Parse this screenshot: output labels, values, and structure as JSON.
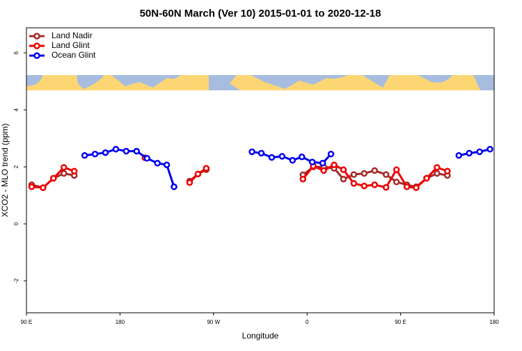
{
  "chart_data": {
    "type": "line",
    "title": "50N-60N March (Ver 10)   2015-01-01 to 2020-12-18",
    "xlabel": "Longitude",
    "ylabel": "XCO2 - MLO trend (ppm)",
    "xlim": [
      90,
      540
    ],
    "ylim": [
      -3.12,
      6.88
    ],
    "xticks": [
      {
        "value": 90,
        "label": "90 E"
      },
      180,
      {
        "value": 270,
        "label": "90 W"
      },
      {
        "value": 360,
        "label": "0"
      },
      {
        "value": 450,
        "label": "90 E"
      },
      {
        "value": 540,
        "label": "180"
      }
    ],
    "yticks": [
      -2,
      0,
      2,
      4,
      6
    ],
    "legend": "top-left",
    "series": [
      {
        "name": "Land Nadir",
        "color": "#a52a2a",
        "x": [
          95,
          106,
          116,
          126,
          136,
          null,
          247,
          255,
          263,
          null,
          356,
          366,
          376,
          386,
          395,
          405,
          415,
          425,
          436,
          446,
          456,
          465,
          475,
          485,
          495
        ],
        "values": [
          1.37,
          1.27,
          1.6,
          1.77,
          1.7,
          null,
          1.5,
          1.75,
          1.9,
          null,
          1.72,
          2.0,
          2.0,
          1.95,
          1.57,
          1.73,
          1.77,
          1.87,
          1.73,
          1.47,
          1.37,
          1.3,
          1.6,
          1.77,
          1.7
        ]
      },
      {
        "name": "Land Glint",
        "color": "#ee0000",
        "x": [
          95,
          106,
          116,
          126,
          136,
          null,
          204,
          null,
          247,
          255,
          263,
          null,
          356,
          366,
          376,
          386,
          395,
          405,
          415,
          425,
          436,
          446,
          456,
          465,
          475,
          485,
          495
        ],
        "values": [
          1.3,
          1.27,
          1.6,
          1.98,
          1.85,
          null,
          2.32,
          null,
          1.45,
          1.75,
          1.95,
          null,
          1.57,
          2.03,
          1.87,
          2.07,
          1.9,
          1.42,
          1.33,
          1.37,
          1.28,
          1.9,
          1.3,
          1.27,
          1.6,
          1.98,
          1.85
        ]
      },
      {
        "name": "Ocean Glint",
        "color": "#0000ee",
        "x": [
          146,
          156,
          166,
          176,
          186,
          196,
          206,
          216,
          225,
          232,
          null,
          307,
          316,
          326,
          336,
          346,
          355,
          365,
          375,
          383,
          null,
          506,
          516,
          526,
          536
        ],
        "values": [
          2.4,
          2.45,
          2.5,
          2.62,
          2.55,
          2.55,
          2.3,
          2.13,
          2.07,
          1.3,
          null,
          2.53,
          2.48,
          2.33,
          2.37,
          2.23,
          2.35,
          2.17,
          2.13,
          2.45,
          null,
          2.4,
          2.48,
          2.53,
          2.62
        ]
      }
    ]
  }
}
